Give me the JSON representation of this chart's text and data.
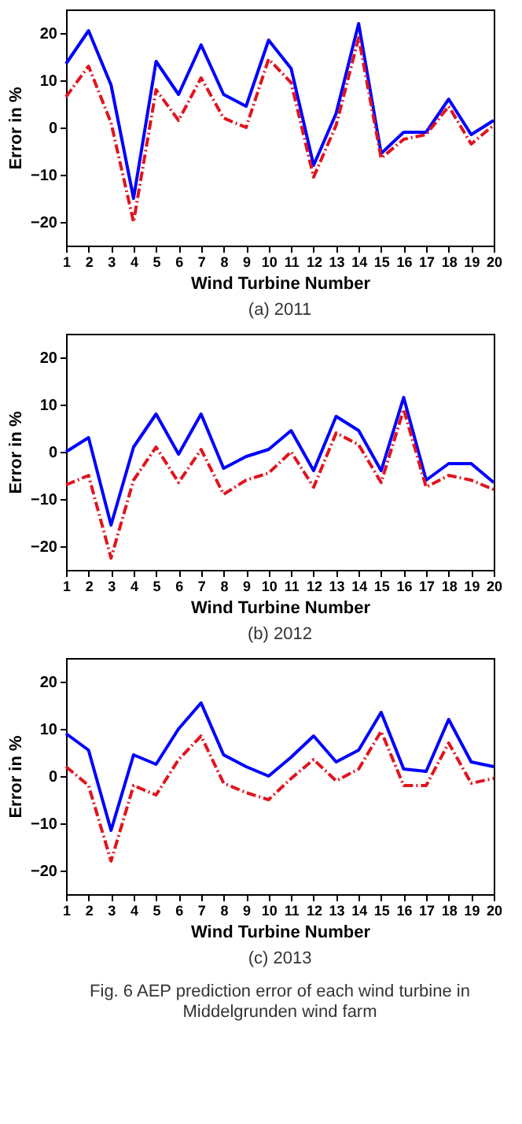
{
  "chart_data": [
    {
      "type": "line",
      "title": "(a) 2011",
      "xlabel": "Wind Turbine Number",
      "ylabel": "Error in %",
      "x": [
        1,
        2,
        3,
        4,
        5,
        6,
        7,
        8,
        9,
        10,
        11,
        12,
        13,
        14,
        15,
        16,
        17,
        18,
        19,
        20
      ],
      "xlim": [
        1,
        20
      ],
      "xticks": [
        1,
        2,
        3,
        4,
        5,
        6,
        7,
        8,
        9,
        10,
        11,
        12,
        13,
        14,
        15,
        16,
        17,
        18,
        19,
        20
      ],
      "ylim": [
        -25,
        25
      ],
      "yticks": [
        -20,
        -10,
        0,
        10,
        20
      ],
      "grid": false,
      "series": [
        {
          "color": "#0000ff",
          "line_style": "solid",
          "values": [
            13.5,
            20.5,
            9,
            -15,
            14,
            7,
            17.5,
            7,
            4.5,
            18.5,
            12.5,
            -8,
            3,
            22,
            -5.5,
            -1,
            -1,
            6,
            -1.5,
            1.5
          ]
        },
        {
          "color": "#e0141e",
          "line_style": "dashed",
          "values": [
            6.5,
            13,
            1,
            -20,
            8,
            1.5,
            10.5,
            2,
            0,
            14.5,
            9.5,
            -10.5,
            0.5,
            19,
            -6.5,
            -2.5,
            -1.5,
            4.5,
            -3.5,
            0.5
          ]
        }
      ]
    },
    {
      "type": "line",
      "title": "(b) 2012",
      "xlabel": "Wind Turbine Number",
      "ylabel": "Error in %",
      "x": [
        1,
        2,
        3,
        4,
        5,
        6,
        7,
        8,
        9,
        10,
        11,
        12,
        13,
        14,
        15,
        16,
        17,
        18,
        19,
        20
      ],
      "xlim": [
        1,
        20
      ],
      "xticks": [
        1,
        2,
        3,
        4,
        5,
        6,
        7,
        8,
        9,
        10,
        11,
        12,
        13,
        14,
        15,
        16,
        17,
        18,
        19,
        20
      ],
      "ylim": [
        -25,
        25
      ],
      "yticks": [
        -20,
        -10,
        0,
        10,
        20
      ],
      "grid": false,
      "series": [
        {
          "color": "#0000ff",
          "line_style": "solid",
          "values": [
            0,
            3,
            -15.5,
            1,
            8,
            -0.5,
            8,
            -3.5,
            -1,
            0.5,
            4.5,
            -4,
            7.5,
            4.5,
            -4,
            11.5,
            -6,
            -2.5,
            -2.5,
            -6.5
          ]
        },
        {
          "color": "#e0141e",
          "line_style": "dashed",
          "values": [
            -7,
            -5,
            -22.5,
            -6,
            1,
            -6.5,
            0.5,
            -9,
            -6,
            -4.5,
            0,
            -7.5,
            4,
            1.5,
            -6.5,
            9,
            -7.5,
            -5,
            -6,
            -8
          ]
        }
      ]
    },
    {
      "type": "line",
      "title": "(c) 2013",
      "xlabel": "Wind Turbine Number",
      "ylabel": "Error in %",
      "x": [
        1,
        2,
        3,
        4,
        5,
        6,
        7,
        8,
        9,
        10,
        11,
        12,
        13,
        14,
        15,
        16,
        17,
        18,
        19,
        20
      ],
      "xlim": [
        1,
        20
      ],
      "xticks": [
        1,
        2,
        3,
        4,
        5,
        6,
        7,
        8,
        9,
        10,
        11,
        12,
        13,
        14,
        15,
        16,
        17,
        18,
        19,
        20
      ],
      "ylim": [
        -25,
        25
      ],
      "yticks": [
        -20,
        -10,
        0,
        10,
        20
      ],
      "grid": false,
      "annotations": [
        "Fig. 6 AEP prediction error of each wind turbine in Middelgrunden wind farm"
      ],
      "series": [
        {
          "color": "#0000ff",
          "line_style": "solid",
          "values": [
            9,
            5.5,
            -11.5,
            4.5,
            2.5,
            10,
            15.5,
            4.5,
            2,
            0,
            4,
            8.5,
            3,
            5.5,
            13.5,
            1.5,
            1,
            12,
            3,
            2
          ]
        },
        {
          "color": "#e0141e",
          "line_style": "dashed",
          "values": [
            2,
            -2,
            -18,
            -2,
            -4,
            3.5,
            8.5,
            -1.5,
            -3.5,
            -5,
            -0.5,
            3.5,
            -1,
            1.5,
            9.5,
            -2,
            -2,
            7,
            -1.5,
            -0.5
          ]
        }
      ]
    }
  ]
}
